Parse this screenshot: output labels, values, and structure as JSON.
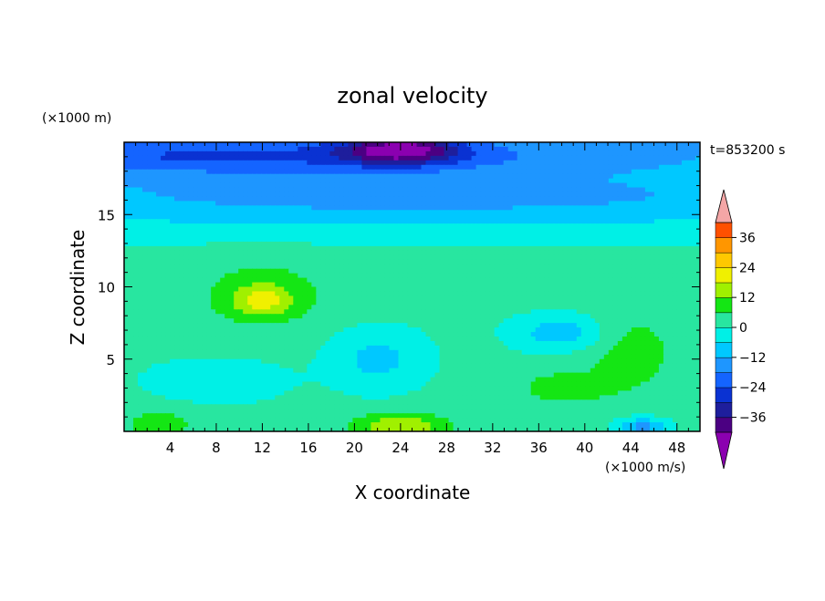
{
  "chart_data": {
    "type": "heatmap",
    "title": "zonal velocity",
    "xlabel": "X coordinate",
    "ylabel": "Z coordinate",
    "x_unit_label": "(×1000 m/s)",
    "y_unit_label": "(×1000 m)",
    "time_label": "t=853200 s",
    "xlim": [
      0,
      50
    ],
    "ylim": [
      0,
      20
    ],
    "x_ticks": [
      4,
      8,
      12,
      16,
      20,
      24,
      28,
      32,
      36,
      40,
      44,
      48
    ],
    "y_ticks": [
      5,
      10,
      15
    ],
    "colorbar": {
      "levels": [
        -42,
        -36,
        -30,
        -24,
        -18,
        -12,
        -6,
        0,
        6,
        12,
        18,
        24,
        30,
        36,
        42
      ],
      "tick_labels": [
        36,
        24,
        12,
        0,
        -12,
        -24,
        -36
      ],
      "colors": [
        "#4b0082",
        "#1e1e9c",
        "#0a32d2",
        "#1464ff",
        "#1e96ff",
        "#00c8ff",
        "#00f0e6",
        "#28e6a0",
        "#14e614",
        "#a0f000",
        "#f0f000",
        "#ffc800",
        "#ff9600",
        "#ff5000",
        "#ff1414"
      ],
      "over_color": "#f4a6a6",
      "under_color": "#8b00b0"
    },
    "features": [
      {
        "x": 24,
        "z": 19.5,
        "value": -27,
        "rx": 5,
        "rz": 1.0
      },
      {
        "x": 10,
        "z": 19.0,
        "value": -14,
        "rx": 30,
        "rz": 1.3
      },
      {
        "x": 25,
        "z": 16.0,
        "value": -8,
        "rx": 40,
        "rz": 1.8
      },
      {
        "x": 12,
        "z": 9.5,
        "value": 10,
        "rx": 5.5,
        "rz": 2.3
      },
      {
        "x": 12,
        "z": 9.0,
        "value": 14,
        "rx": 2.5,
        "rz": 1.0
      },
      {
        "x": 24,
        "z": 0.4,
        "value": 18,
        "rx": 4,
        "rz": 0.8
      },
      {
        "x": 3,
        "z": 0.5,
        "value": 10,
        "rx": 3,
        "rz": 1.0
      },
      {
        "x": 44,
        "z": 5.5,
        "value": 9,
        "rx": 4,
        "rz": 3.0
      },
      {
        "x": 38,
        "z": 3.0,
        "value": 9,
        "rx": 4,
        "rz": 1.2
      },
      {
        "x": 22,
        "z": 5.0,
        "value": -8,
        "rx": 4,
        "rz": 2.0
      },
      {
        "x": 38,
        "z": 6.8,
        "value": -10,
        "rx": 4,
        "rz": 1.2
      },
      {
        "x": 45,
        "z": 0.3,
        "value": -15,
        "rx": 2,
        "rz": 0.6
      },
      {
        "x": 8,
        "z": 3.5,
        "value": -4,
        "rx": 6,
        "rz": 1.5
      }
    ]
  }
}
